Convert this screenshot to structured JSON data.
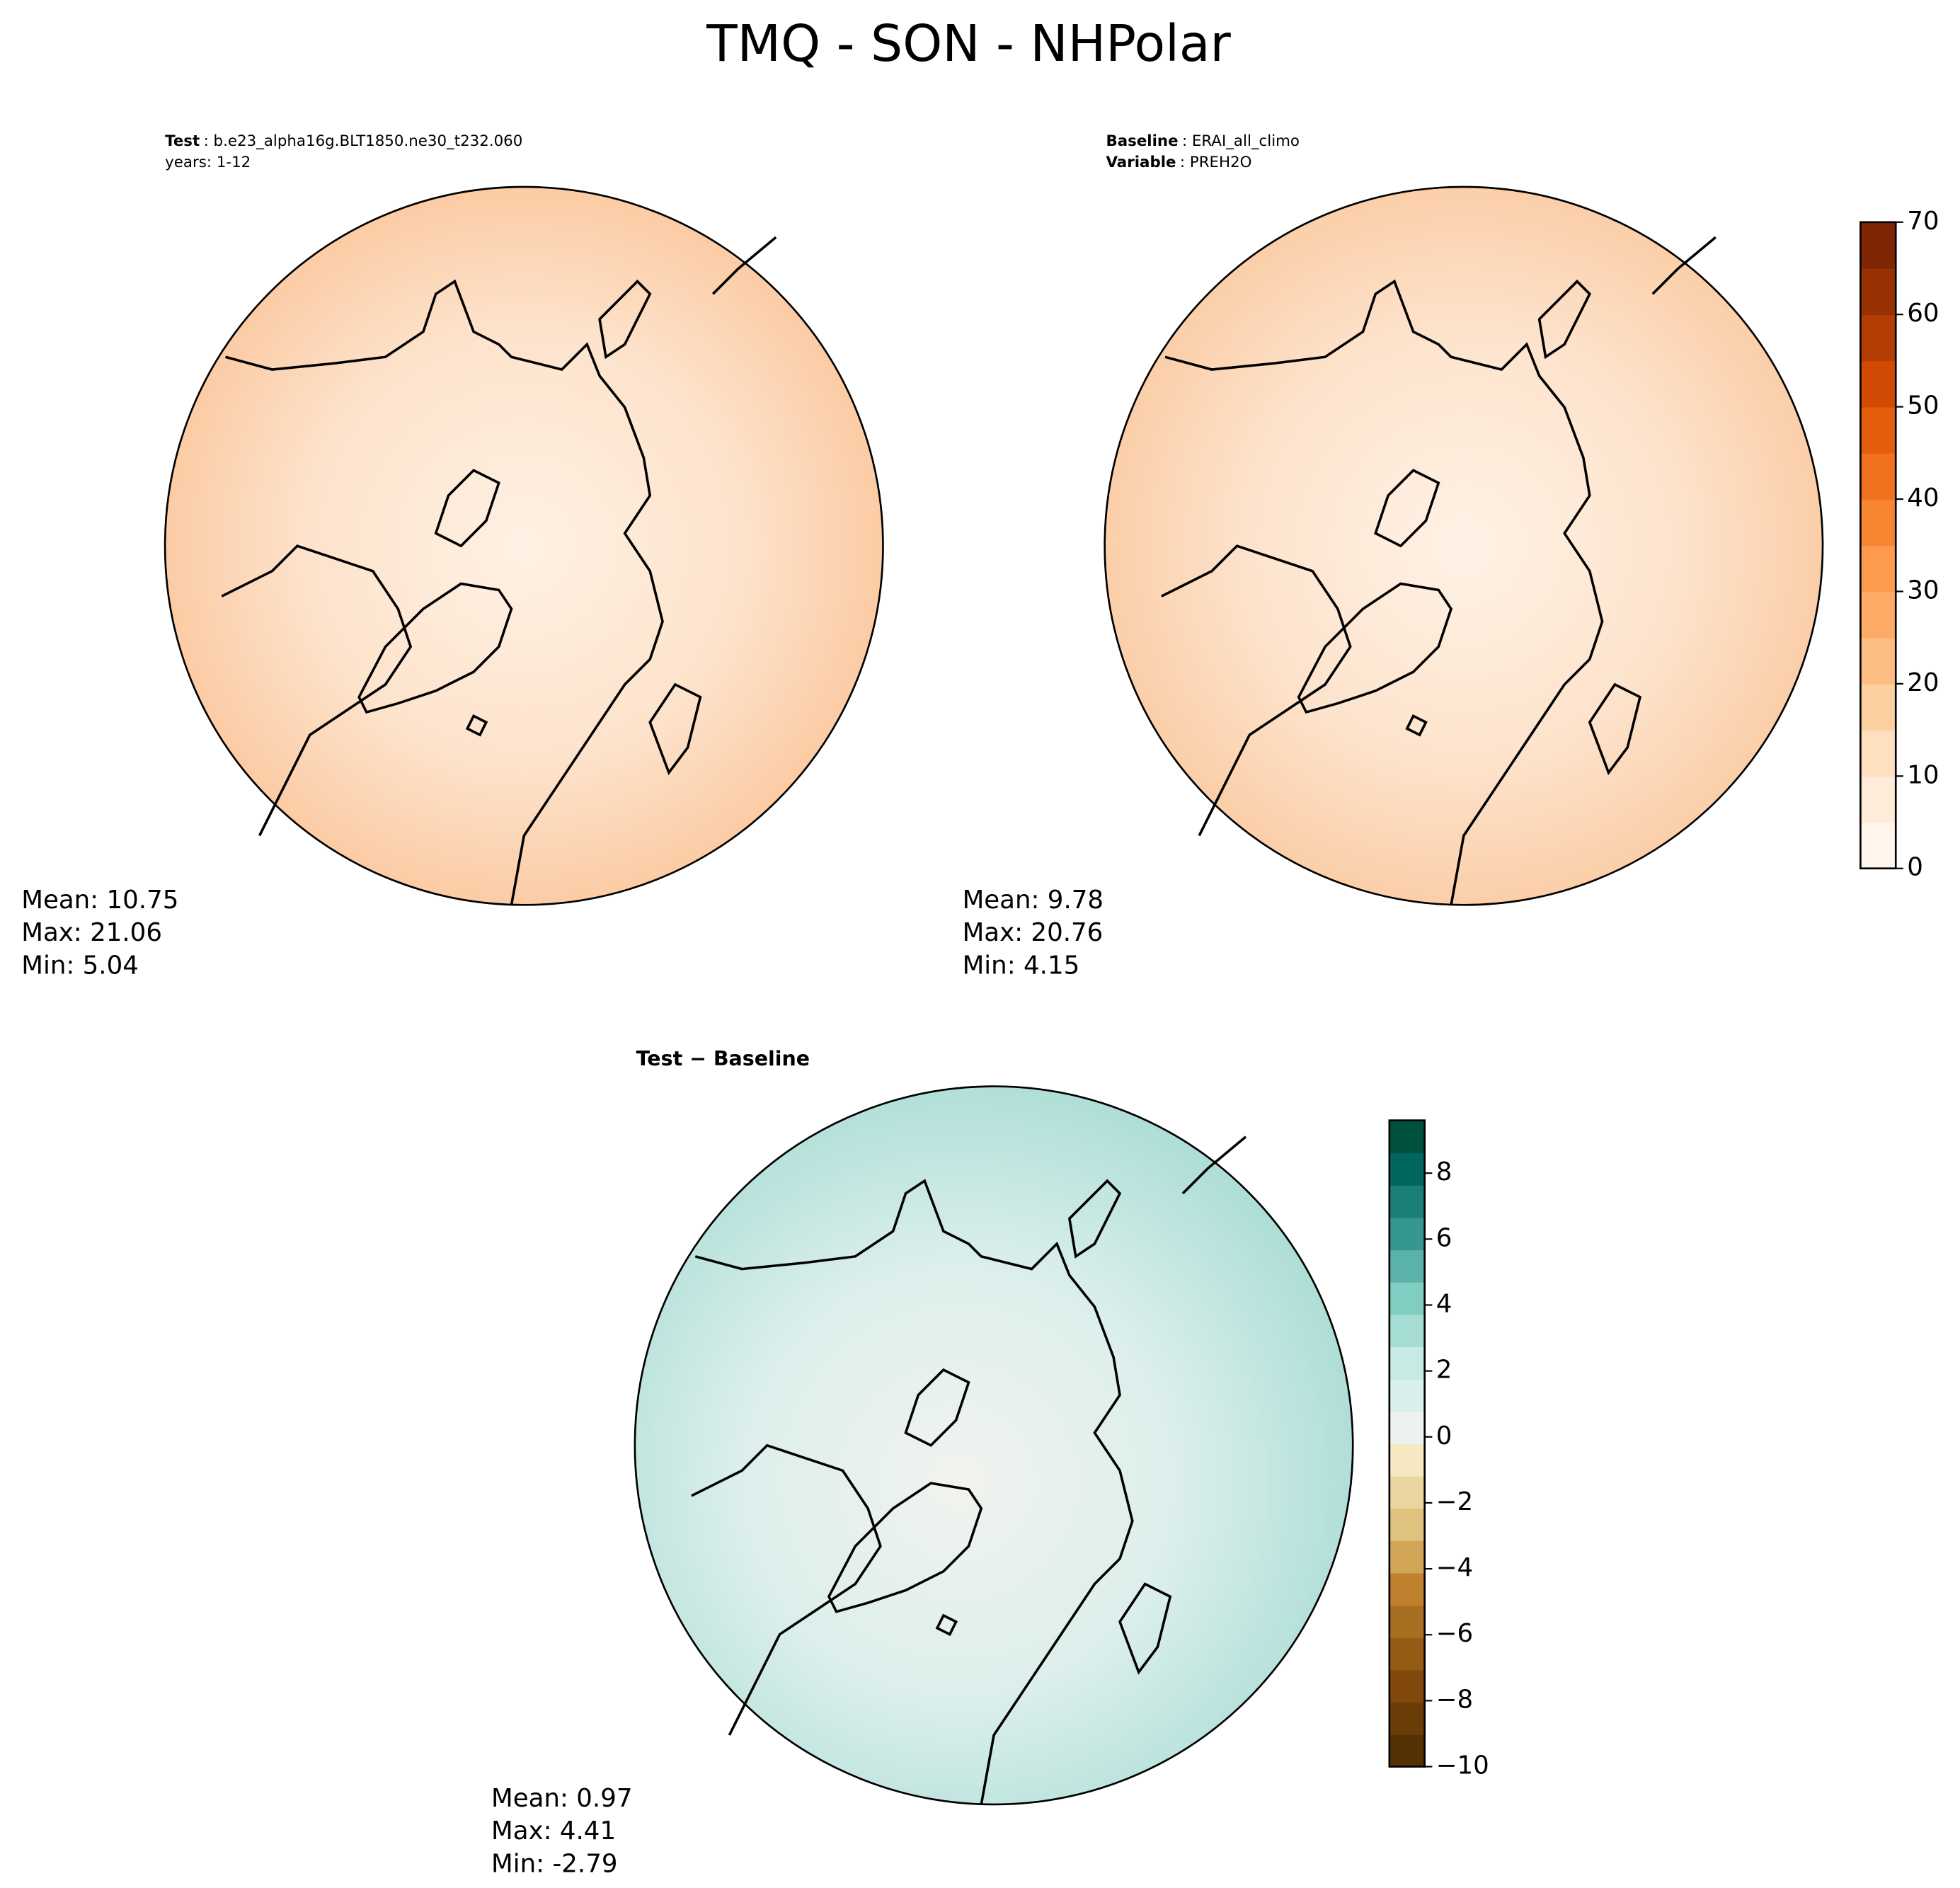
{
  "title": "TMQ - SON - NHPolar",
  "panels": [
    {
      "header": [
        {
          "key": "Test",
          "text": ": b.e23_alpha16g.BLT1850.ne30_t232.060"
        },
        {
          "key": null,
          "text": "years: 1-12"
        }
      ],
      "stats": [
        "Mean: 10.75",
        "Max: 21.06",
        "Min:  5.04"
      ]
    },
    {
      "header": [
        {
          "key": "Baseline",
          "text": ": ERAI_all_climo"
        },
        {
          "key": "Variable",
          "text": ": PREH2O"
        }
      ],
      "stats": [
        "Mean:  9.78",
        "Max: 20.76",
        "Min:  4.15"
      ]
    },
    {
      "header": [
        {
          "key": "Test − Baseline",
          "text": null
        }
      ],
      "stats": [
        "Mean:  0.97",
        "Max:  4.41",
        "Min: -2.79"
      ]
    }
  ],
  "colorbars": [
    {
      "lim": [
        0,
        70
      ],
      "ticks": [
        0,
        10,
        20,
        30,
        40,
        50,
        60,
        70
      ],
      "colors": [
        "#fff5eb",
        "#feebd8",
        "#fee0c1",
        "#fdd0a2",
        "#fdbd83",
        "#fdab67",
        "#fd9a4e",
        "#f88532",
        "#f0711e",
        "#e35d0d",
        "#d04a03",
        "#b43d03",
        "#993203",
        "#7f2704"
      ]
    },
    {
      "lim": [
        -10,
        9.6
      ],
      "ticks": [
        {
          "value": -10,
          "label": "−10"
        },
        {
          "value": -8,
          "label": "−8"
        },
        {
          "value": -6,
          "label": "−6"
        },
        {
          "value": -4,
          "label": "−4"
        },
        {
          "value": -2,
          "label": "−2"
        },
        0,
        2,
        4,
        6,
        8
      ],
      "colors": [
        "#543005",
        "#6a3d07",
        "#80480a",
        "#955c15",
        "#a86e22",
        "#bf812d",
        "#d1a456",
        "#dfc27d",
        "#ebd5a0",
        "#f6e8c3",
        "#eef2ee",
        "#d9efeb",
        "#c7eae5",
        "#a5dcd4",
        "#80cdc1",
        "#5ab2a8",
        "#35978f",
        "#1b7f76",
        "#01665e",
        "#00503f"
      ]
    }
  ]
}
